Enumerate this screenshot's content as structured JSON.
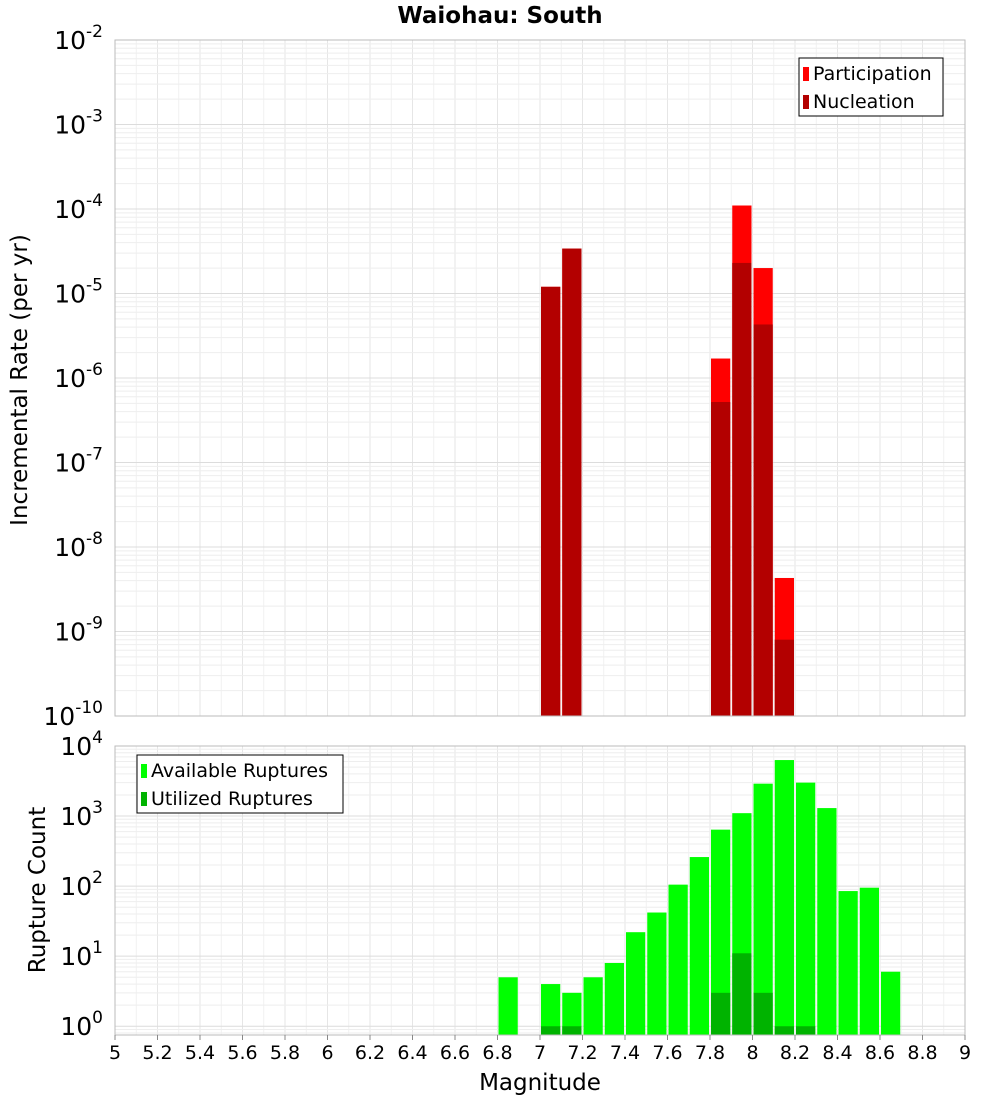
{
  "chart_data": [
    {
      "type": "bar",
      "title": "Waiohau: South",
      "xlabel": "",
      "ylabel": "Incremental Rate (per yr)",
      "yscale": "log",
      "ylim": [
        1e-10,
        0.01
      ],
      "xlim": [
        5,
        9
      ],
      "bin_width": 0.1,
      "legend": "top-right",
      "grid": true,
      "y_tick_exponents": [
        "-10",
        "-9",
        "-8",
        "-7",
        "-6",
        "-5",
        "-4",
        "-3",
        "-2"
      ],
      "series": [
        {
          "name": "Participation",
          "color": "#ff0000",
          "x": [
            7.05,
            7.15,
            7.85,
            7.95,
            8.05,
            8.15
          ],
          "values": [
            1.2e-05,
            3.4e-05,
            1.7e-06,
            0.00011,
            2e-05,
            4.3e-09
          ]
        },
        {
          "name": "Nucleation",
          "color": "#b30000",
          "x": [
            7.05,
            7.15,
            7.85,
            7.95,
            8.05,
            8.15
          ],
          "values": [
            1.2e-05,
            3.4e-05,
            5.2e-07,
            2.3e-05,
            4.3e-06,
            8e-10
          ]
        }
      ]
    },
    {
      "type": "bar",
      "title": "",
      "xlabel": "Magnitude",
      "ylabel": "Rupture Count",
      "yscale": "log",
      "ylim": [
        0.75,
        10000
      ],
      "xlim": [
        5,
        9
      ],
      "bin_width": 0.1,
      "legend": "top-left",
      "grid": true,
      "y_tick_exponents": [
        "0",
        "1",
        "2",
        "3",
        "4"
      ],
      "x_ticks": [
        "5",
        "5.2",
        "5.4",
        "5.6",
        "5.8",
        "6",
        "6.2",
        "6.4",
        "6.6",
        "6.8",
        "7",
        "7.2",
        "7.4",
        "7.6",
        "7.8",
        "8",
        "8.2",
        "8.4",
        "8.6",
        "8.8",
        "9"
      ],
      "series": [
        {
          "name": "Available Ruptures",
          "color": "#00ff00",
          "x": [
            6.85,
            7.05,
            7.15,
            7.25,
            7.35,
            7.45,
            7.55,
            7.65,
            7.75,
            7.85,
            7.95,
            8.05,
            8.15,
            8.25,
            8.35,
            8.45,
            8.55,
            8.65
          ],
          "values": [
            5,
            4,
            3,
            5,
            8,
            22,
            42,
            105,
            260,
            640,
            1100,
            2900,
            6300,
            3000,
            1300,
            85,
            95,
            6
          ]
        },
        {
          "name": "Utilized Ruptures",
          "color": "#00b300",
          "x": [
            7.05,
            7.15,
            7.85,
            7.95,
            8.05,
            8.15,
            8.25
          ],
          "values": [
            1,
            1,
            3,
            11,
            3,
            1,
            1
          ]
        }
      ]
    }
  ]
}
